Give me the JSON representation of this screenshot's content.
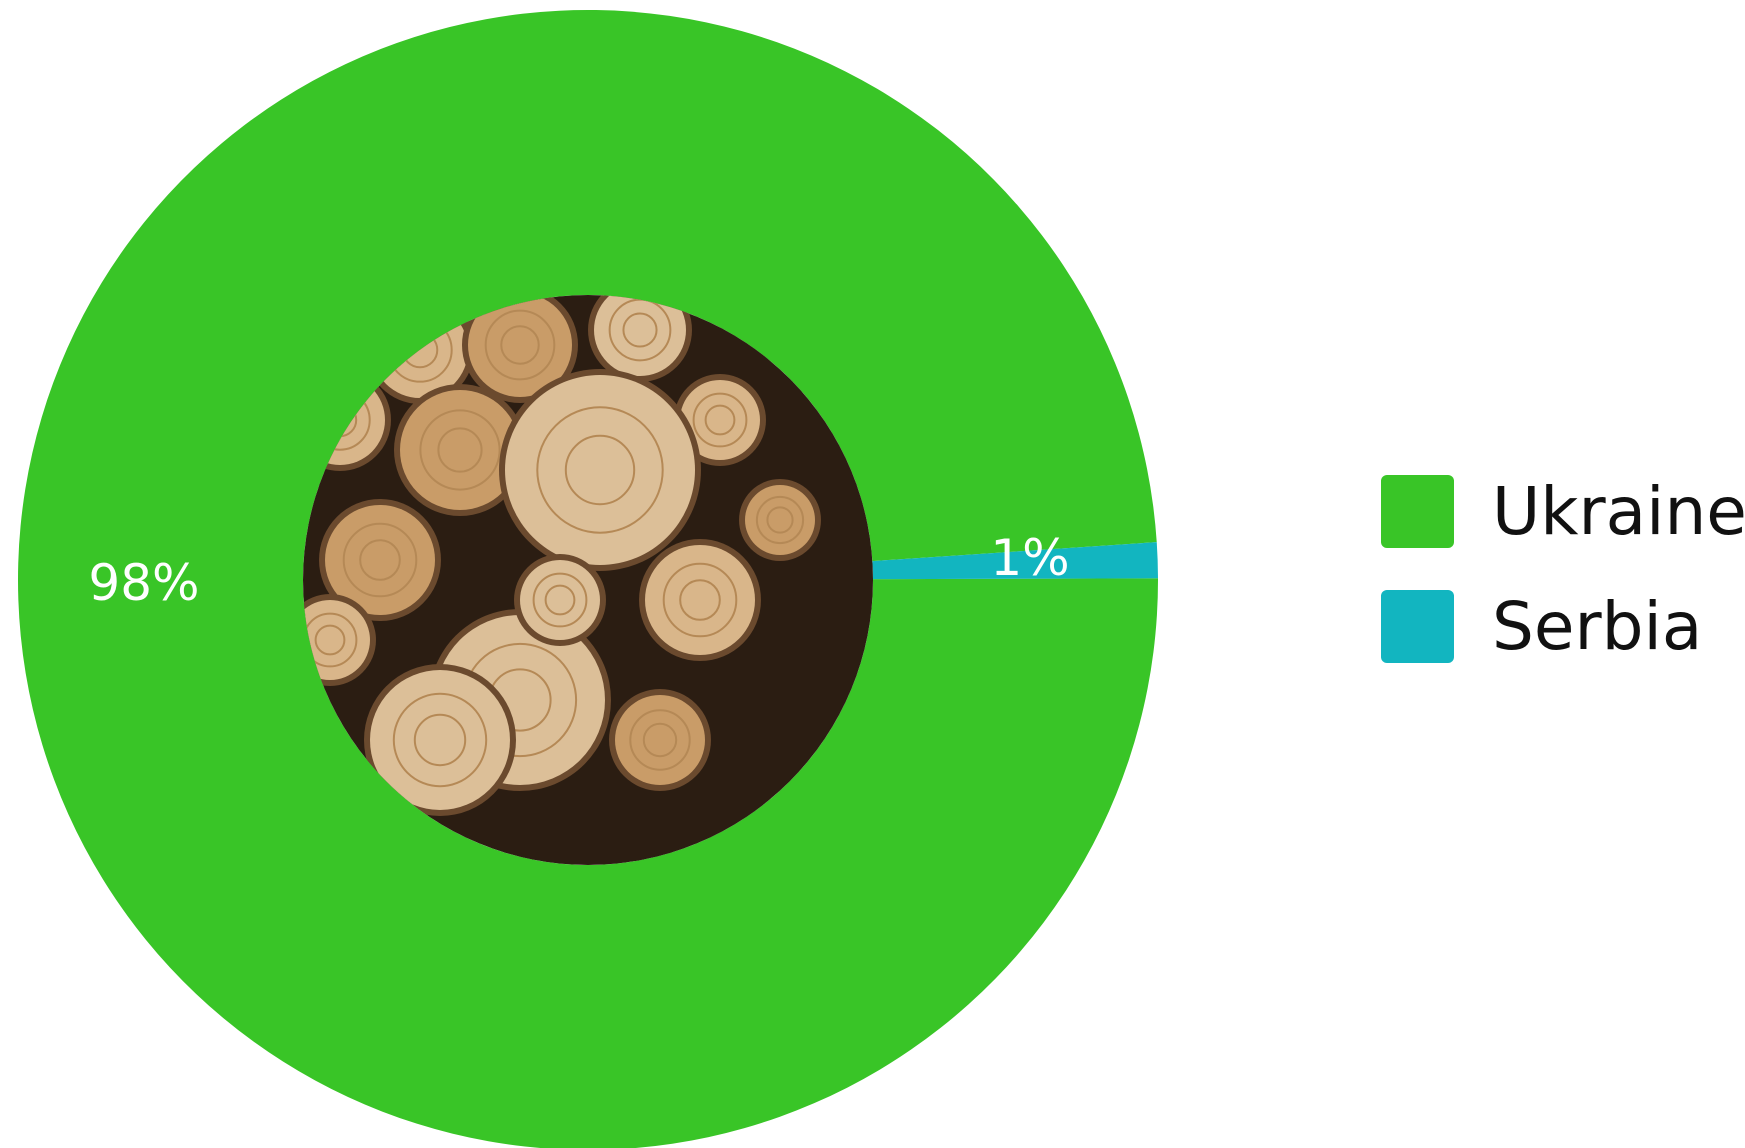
{
  "chart_data": {
    "type": "pie",
    "donut": true,
    "categories": [
      "Ukraine",
      "Serbia"
    ],
    "values": [
      98,
      1
    ],
    "data_labels": [
      "98%",
      "1%"
    ],
    "colors": [
      "#39c527",
      "#12b5c0"
    ],
    "legend_position": "right",
    "center_image": "stacked firewood logs photo"
  },
  "legend": {
    "items": [
      {
        "label": "Ukraine",
        "color": "#39c527"
      },
      {
        "label": "Serbia",
        "color": "#12b5c0"
      }
    ]
  }
}
